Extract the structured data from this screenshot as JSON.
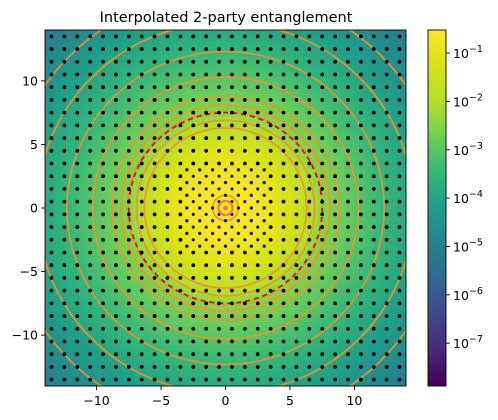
{
  "chart_data": {
    "type": "heatmap",
    "title": "Interpolated 2-party entanglement",
    "xlabel": "",
    "ylabel": "",
    "xlim": [
      -14,
      14
    ],
    "ylim": [
      -14,
      14
    ],
    "x_ticks": [
      -10,
      -5,
      0,
      5,
      10
    ],
    "y_ticks": [
      -10,
      -5,
      0,
      5,
      10
    ],
    "x_tick_labels": [
      "−10",
      "−5",
      "0",
      "5",
      "10"
    ],
    "y_tick_labels": [
      "−10",
      "−5",
      "0",
      "5",
      "10"
    ],
    "colormap": "viridis",
    "color_scale": "log",
    "colorbar_range": [
      1.3e-08,
      0.3
    ],
    "colorbar_ticks": [
      {
        "base": "10",
        "exp": "−1",
        "value": 0.1
      },
      {
        "base": "10",
        "exp": "−2",
        "value": 0.01
      },
      {
        "base": "10",
        "exp": "−3",
        "value": 0.001
      },
      {
        "base": "10",
        "exp": "−4",
        "value": 0.0001
      },
      {
        "base": "10",
        "exp": "−5",
        "value": 1e-05
      },
      {
        "base": "10",
        "exp": "−6",
        "value": 1e-06
      },
      {
        "base": "10",
        "exp": "−7",
        "value": 1e-07
      }
    ],
    "value_model": {
      "peak": 0.3,
      "e_folding_radius": 1.6,
      "shoulder_radius": 7.5
    },
    "sample_grid": {
      "min": -13.5,
      "max": 13.5,
      "step": 1
    },
    "sample_points_color": "#000000",
    "highlighted_points_color": "#1a1aa8",
    "highlighted_points_radius": 2.6,
    "center_marker": {
      "x": 0,
      "y": 0,
      "color": "#e8803a"
    },
    "contour_color": "#f0922e",
    "contour_radii": [
      1.0,
      6.3,
      6.9,
      7.6,
      8.1,
      8.8,
      10.3,
      12.3,
      14.6,
      17.0
    ],
    "dashed_contour": {
      "radius": 7.5,
      "color": "#b22222"
    }
  }
}
